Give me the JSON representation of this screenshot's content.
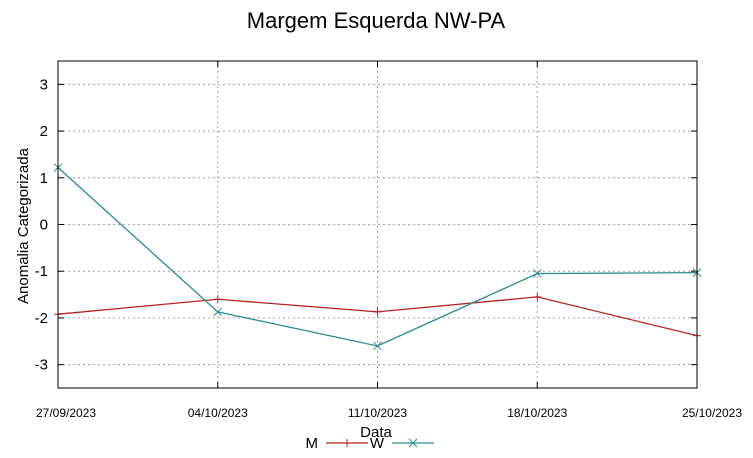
{
  "chart_data": {
    "type": "line",
    "title": "Margem Esquerda NW-PA",
    "xlabel": "Data",
    "ylabel": "Anomalia Categorizada",
    "categories": [
      "27/09/2023",
      "04/10/2023",
      "11/10/2023",
      "18/10/2023",
      "25/10/2023"
    ],
    "ylim": [
      -3.5,
      3.5
    ],
    "yticks": [
      3,
      2,
      1,
      0,
      -1,
      -2,
      -3
    ],
    "ytick_labels": [
      "3",
      "2",
      "1",
      "0",
      "-1",
      "-2",
      "-3"
    ],
    "grid": true,
    "legend_position": "bottom-center",
    "series": [
      {
        "name": "M",
        "color": "#b22222",
        "marker": "plus",
        "values": [
          -1.92,
          -1.6,
          -1.87,
          -1.55,
          -2.38
        ]
      },
      {
        "name": "W",
        "color": "#2e8b8b",
        "marker": "cross",
        "values": [
          1.22,
          -1.87,
          -2.6,
          -1.05,
          -1.03
        ]
      }
    ]
  }
}
